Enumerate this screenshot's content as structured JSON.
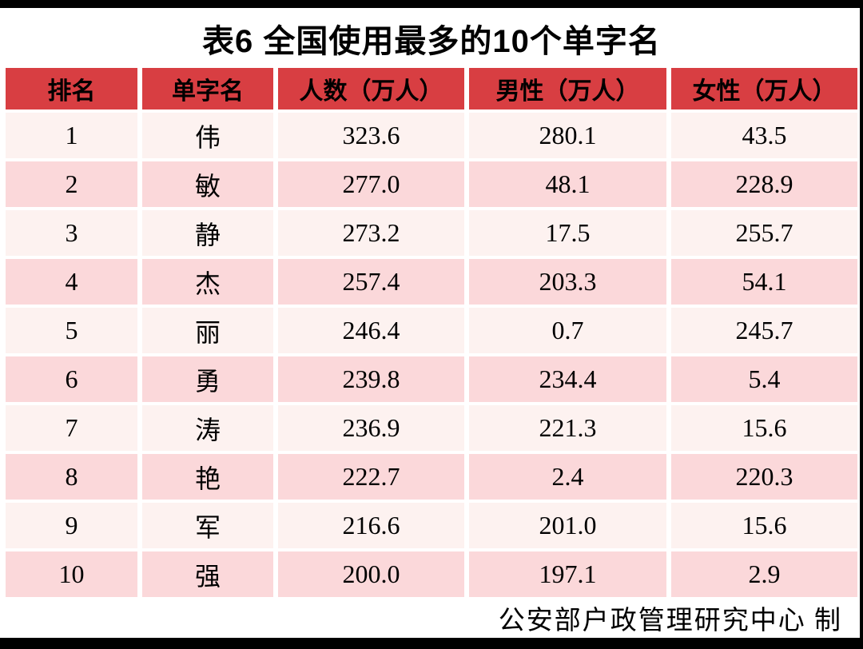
{
  "title": "表6 全国使用最多的10个单字名",
  "chart_data": {
    "type": "table",
    "title": "表6 全国使用最多的10个单字名",
    "columns": [
      "排名",
      "单字名",
      "人数（万人）",
      "男性（万人）",
      "女性（万人）"
    ],
    "rows": [
      [
        "1",
        "伟",
        "323.6",
        "280.1",
        "43.5"
      ],
      [
        "2",
        "敏",
        "277.0",
        "48.1",
        "228.9"
      ],
      [
        "3",
        "静",
        "273.2",
        "17.5",
        "255.7"
      ],
      [
        "4",
        "杰",
        "257.4",
        "203.3",
        "54.1"
      ],
      [
        "5",
        "丽",
        "246.4",
        "0.7",
        "245.7"
      ],
      [
        "6",
        "勇",
        "239.8",
        "234.4",
        "5.4"
      ],
      [
        "7",
        "涛",
        "236.9",
        "221.3",
        "15.6"
      ],
      [
        "8",
        "艳",
        "222.7",
        "2.4",
        "220.3"
      ],
      [
        "9",
        "军",
        "216.6",
        "201.0",
        "15.6"
      ],
      [
        "10",
        "强",
        "200.0",
        "197.1",
        "2.9"
      ]
    ],
    "source_note": "公安部户政管理研究中心 制"
  },
  "colors": {
    "header_bg": "#d83e42",
    "row_light": "#fdf2f0",
    "row_dark": "#fbd8da",
    "text": "#000000",
    "frame": "#000000"
  }
}
